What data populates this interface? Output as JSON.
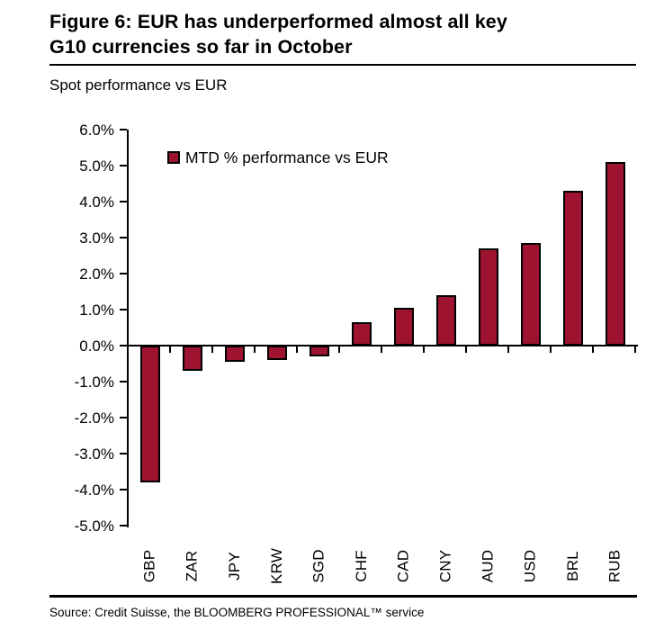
{
  "header": {
    "title_line1": "Figure 6: EUR has underperformed almost all key",
    "title_line2": "G10 currencies so far in October",
    "subtitle": "Spot performance vs EUR"
  },
  "legend": {
    "label": "MTD % performance vs EUR"
  },
  "footer": {
    "source": "Source: Credit Suisse, the BLOOMBERG PROFESSIONAL™ service"
  },
  "colors": {
    "bar_fill": "#9E1430",
    "bar_border": "#000000",
    "axis": "#000000",
    "text": "#000000",
    "background": "#FFFFFF"
  },
  "chart_data": {
    "type": "bar",
    "title": "Figure 6: EUR has underperformed almost all key G10 currencies so far in October",
    "subtitle": "Spot performance vs EUR",
    "legend_entries": [
      "MTD % performance vs EUR"
    ],
    "legend_position": "top-left-inside",
    "categories": [
      "GBP",
      "ZAR",
      "JPY",
      "KRW",
      "SGD",
      "CHF",
      "CAD",
      "CNY",
      "AUD",
      "USD",
      "BRL",
      "RUB"
    ],
    "values": [
      -3.8,
      -0.7,
      -0.45,
      -0.4,
      -0.3,
      0.65,
      1.05,
      1.4,
      2.7,
      2.85,
      4.3,
      5.1
    ],
    "unit": "%",
    "xlabel": "",
    "ylabel": "",
    "ylim": [
      -5.0,
      6.0
    ],
    "ytick_step": 1.0,
    "ytick_labels": [
      "6.0%",
      "5.0%",
      "4.0%",
      "3.0%",
      "2.0%",
      "1.0%",
      "0.0%",
      "-1.0%",
      "-2.0%",
      "-3.0%",
      "-4.0%",
      "-5.0%"
    ],
    "grid": false,
    "bar_color": "#9E1430"
  }
}
